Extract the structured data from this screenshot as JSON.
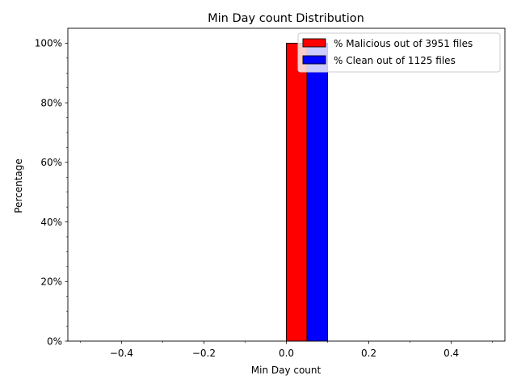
{
  "chart_data": {
    "type": "bar",
    "title": "Min Day count Distribution",
    "xlabel": "Min Day count",
    "ylabel": "Percentage",
    "xlim": [
      -0.53,
      0.53
    ],
    "ylim": [
      0,
      105
    ],
    "x_ticks": [
      -0.4,
      -0.2,
      0.0,
      0.2,
      0.4
    ],
    "x_tick_labels": [
      "−0.4",
      "−0.2",
      "0.0",
      "0.2",
      "0.4"
    ],
    "y_ticks": [
      0,
      20,
      40,
      60,
      80,
      100
    ],
    "y_tick_labels": [
      "0%",
      "20%",
      "40%",
      "60%",
      "80%",
      "100%"
    ],
    "bin_edges": [
      -0.5,
      -0.4,
      -0.3,
      -0.2,
      -0.1,
      0.0,
      0.1,
      0.2,
      0.3,
      0.4,
      0.5
    ],
    "series": [
      {
        "name": "% Malicious out of 3951 files",
        "color": "#ff0000",
        "values": [
          0,
          0,
          0,
          0,
          0,
          100,
          0,
          0,
          0,
          0
        ]
      },
      {
        "name": "% Clean out of 1125 files",
        "color": "#0000ff",
        "values": [
          0,
          0,
          0,
          0,
          0,
          100,
          0,
          0,
          0,
          0
        ]
      }
    ],
    "legend_position": "top-right",
    "grid": false
  }
}
